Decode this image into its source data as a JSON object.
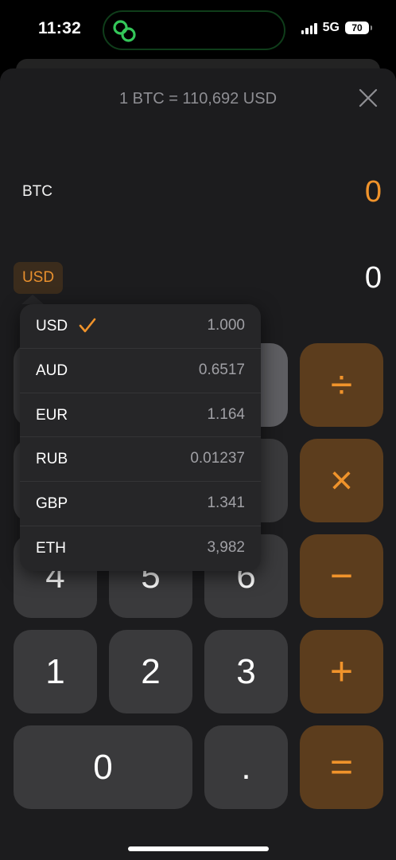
{
  "status": {
    "time": "11:32",
    "network": "5G",
    "battery": "70"
  },
  "converter": {
    "rate_title": "1 BTC = 110,692 USD",
    "from_currency": "BTC",
    "from_value": "0",
    "to_currency": "USD",
    "to_value": "0"
  },
  "dropdown": {
    "selected": "USD",
    "items": [
      {
        "code": "USD",
        "rate": "1.000"
      },
      {
        "code": "AUD",
        "rate": "0.6517"
      },
      {
        "code": "EUR",
        "rate": "1.164"
      },
      {
        "code": "RUB",
        "rate": "0.01237"
      },
      {
        "code": "GBP",
        "rate": "1.341"
      },
      {
        "code": "ETH",
        "rate": "3,982"
      }
    ]
  },
  "keypad": {
    "k4": "4",
    "k5": "5",
    "k6": "6",
    "k1": "1",
    "k2": "2",
    "k3": "3",
    "k0": "0",
    "dot": ".",
    "divide": "÷",
    "multiply": "×",
    "minus": "−",
    "plus": "+",
    "equals": "="
  },
  "colors": {
    "accent": "#f0932b",
    "operator_bg": "#5c3d1d",
    "key_bg": "#3a3a3c",
    "sheet_bg": "#1c1c1e"
  },
  "icons": {
    "island": "link-icon",
    "close": "close-icon",
    "check": "checkmark-icon"
  }
}
